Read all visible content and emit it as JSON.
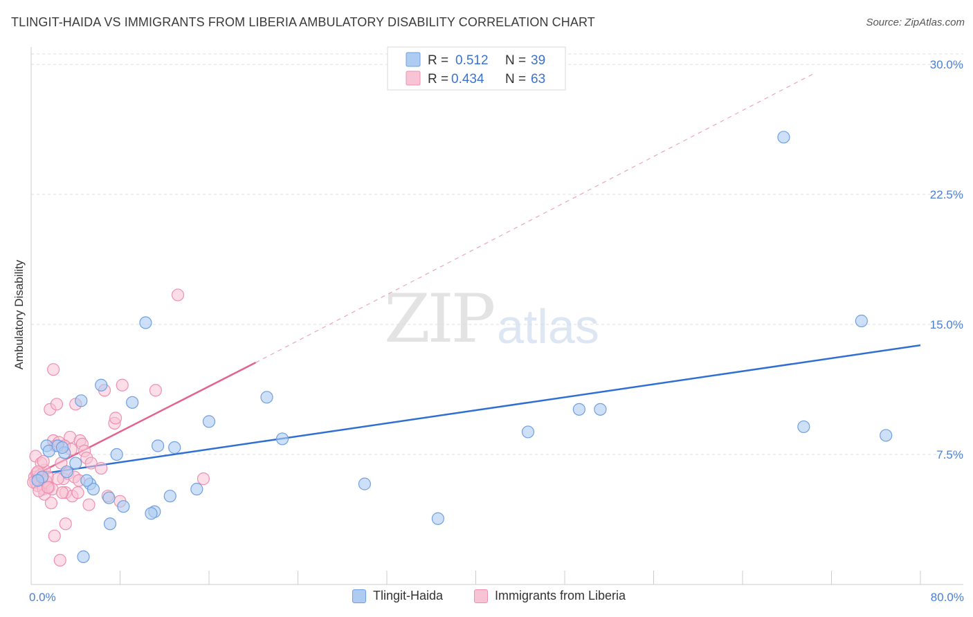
{
  "title": "TLINGIT-HAIDA VS IMMIGRANTS FROM LIBERIA AMBULATORY DISABILITY CORRELATION CHART",
  "source": "Source: ZipAtlas.com",
  "watermark": {
    "zip": "ZIP",
    "atlas": "atlas"
  },
  "legend_top": {
    "rows": [
      {
        "r_label": "R =",
        "r_value": "0.512",
        "n_label": "N =",
        "n_value": "39"
      },
      {
        "r_label": "R =",
        "r_value": "0.434",
        "n_label": "N =",
        "n_value": "63"
      }
    ]
  },
  "legend_bottom": {
    "items": [
      {
        "label": "Tlingit-Haida"
      },
      {
        "label": "Immigrants from Liberia"
      }
    ]
  },
  "colors": {
    "blue_fill": "#aecbf2",
    "blue_stroke": "#6f9fe0",
    "blue_line": "#2f6fd3",
    "pink_fill": "#f8c3d4",
    "pink_stroke": "#ee8fb0",
    "pink_line": "#e3638f",
    "grid": "#dddddd",
    "axis_text": "#4a7fd4"
  },
  "chart_data": {
    "type": "scatter",
    "title": "TLINGIT-HAIDA VS IMMIGRANTS FROM LIBERIA AMBULATORY DISABILITY CORRELATION CHART",
    "xlabel": "",
    "ylabel": "Ambulatory Disability",
    "xlim": [
      0,
      80
    ],
    "ylim": [
      0,
      31
    ],
    "x_tick_labels": [
      "0.0%",
      "80.0%"
    ],
    "y_ticks": [
      7.5,
      15.0,
      22.5,
      30.0
    ],
    "y_tick_labels": [
      "7.5%",
      "15.0%",
      "22.5%",
      "30.0%"
    ],
    "grid": true,
    "legend_position": "top-center",
    "series": [
      {
        "name": "Tlingit-Haida",
        "r": 0.512,
        "n": 39,
        "points": [
          [
            1.4,
            8.0
          ],
          [
            1.6,
            7.7
          ],
          [
            2.4,
            8.0
          ],
          [
            3.0,
            7.6
          ],
          [
            2.8,
            7.9
          ],
          [
            1.0,
            6.2
          ],
          [
            0.6,
            6.0
          ],
          [
            4.5,
            10.6
          ],
          [
            6.3,
            11.5
          ],
          [
            4.0,
            7.0
          ],
          [
            5.3,
            5.8
          ],
          [
            5.6,
            5.5
          ],
          [
            7.7,
            7.5
          ],
          [
            7.0,
            5.0
          ],
          [
            8.3,
            4.5
          ],
          [
            7.1,
            3.5
          ],
          [
            4.7,
            1.6
          ],
          [
            9.1,
            10.5
          ],
          [
            10.3,
            15.1
          ],
          [
            11.4,
            8.0
          ],
          [
            11.1,
            4.2
          ],
          [
            10.8,
            4.1
          ],
          [
            12.5,
            5.1
          ],
          [
            12.9,
            7.9
          ],
          [
            14.9,
            5.5
          ],
          [
            16.0,
            9.4
          ],
          [
            21.2,
            10.8
          ],
          [
            22.6,
            8.4
          ],
          [
            30.0,
            5.8
          ],
          [
            36.6,
            3.8
          ],
          [
            44.7,
            8.8
          ],
          [
            49.3,
            10.1
          ],
          [
            51.2,
            10.1
          ],
          [
            67.7,
            25.8
          ],
          [
            69.5,
            9.1
          ],
          [
            74.7,
            15.2
          ],
          [
            76.9,
            8.6
          ],
          [
            5.0,
            6.0
          ],
          [
            3.2,
            6.5
          ]
        ],
        "trend": {
          "x": [
            0,
            80
          ],
          "y": [
            6.3,
            13.8
          ],
          "style": "solid"
        }
      },
      {
        "name": "Immigrants from Liberia",
        "r": 0.434,
        "n": 63,
        "points": [
          [
            0.3,
            6.2
          ],
          [
            0.4,
            5.9
          ],
          [
            0.5,
            6.4
          ],
          [
            0.6,
            5.7
          ],
          [
            0.7,
            6.0
          ],
          [
            0.8,
            6.3
          ],
          [
            0.9,
            5.8
          ],
          [
            1.0,
            6.1
          ],
          [
            1.1,
            5.5
          ],
          [
            1.2,
            6.6
          ],
          [
            1.3,
            6.0
          ],
          [
            1.4,
            5.9
          ],
          [
            1.5,
            6.2
          ],
          [
            1.6,
            5.6
          ],
          [
            0.4,
            7.4
          ],
          [
            0.9,
            7.0
          ],
          [
            1.2,
            5.2
          ],
          [
            1.8,
            4.7
          ],
          [
            2.0,
            8.3
          ],
          [
            2.2,
            8.0
          ],
          [
            2.5,
            8.2
          ],
          [
            2.7,
            7.0
          ],
          [
            2.9,
            6.1
          ],
          [
            3.1,
            5.3
          ],
          [
            3.3,
            6.4
          ],
          [
            3.5,
            8.5
          ],
          [
            3.7,
            5.1
          ],
          [
            3.9,
            6.2
          ],
          [
            4.0,
            10.4
          ],
          [
            4.2,
            5.3
          ],
          [
            4.4,
            8.3
          ],
          [
            4.6,
            8.1
          ],
          [
            4.8,
            7.7
          ],
          [
            5.0,
            7.3
          ],
          [
            5.2,
            4.6
          ],
          [
            5.4,
            7.0
          ],
          [
            2.0,
            12.4
          ],
          [
            1.7,
            10.1
          ],
          [
            2.3,
            10.4
          ],
          [
            6.3,
            6.7
          ],
          [
            6.6,
            11.2
          ],
          [
            6.9,
            5.1
          ],
          [
            7.5,
            9.3
          ],
          [
            7.6,
            9.6
          ],
          [
            8.0,
            4.8
          ],
          [
            8.2,
            11.5
          ],
          [
            11.2,
            11.2
          ],
          [
            13.2,
            16.7
          ],
          [
            15.5,
            6.1
          ],
          [
            2.1,
            2.8
          ],
          [
            2.6,
            1.4
          ],
          [
            3.1,
            3.5
          ],
          [
            0.6,
            6.5
          ],
          [
            1.9,
            5.5
          ],
          [
            2.4,
            6.1
          ],
          [
            3.0,
            8.0
          ],
          [
            1.1,
            7.1
          ],
          [
            0.2,
            5.9
          ],
          [
            0.7,
            5.4
          ],
          [
            1.5,
            5.6
          ],
          [
            2.8,
            5.3
          ],
          [
            3.6,
            7.8
          ],
          [
            4.3,
            6.0
          ]
        ],
        "trend": {
          "x": [
            0,
            20.2
          ],
          "y": [
            6.2,
            12.8
          ],
          "style": "solid",
          "extension": {
            "x": [
              20.2,
              70.5
            ],
            "y": [
              12.8,
              29.5
            ],
            "style": "dashed"
          }
        }
      }
    ]
  }
}
